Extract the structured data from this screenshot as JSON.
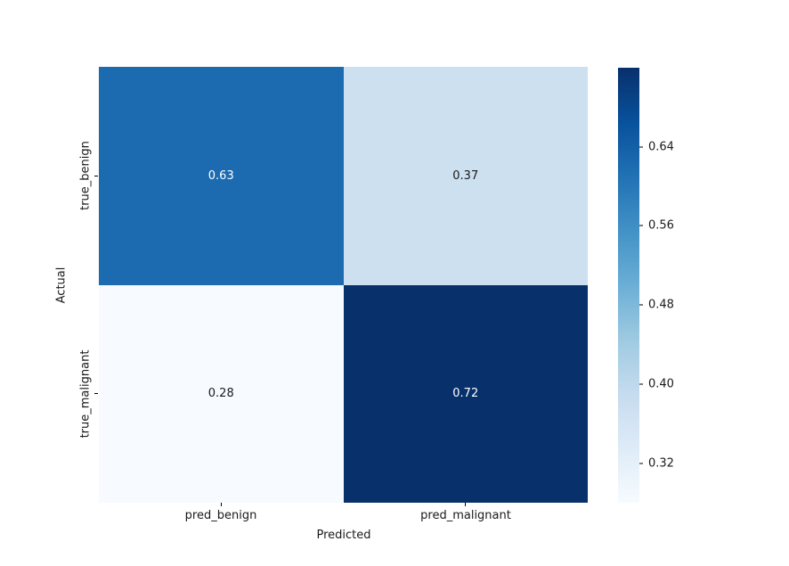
{
  "chart_data": {
    "type": "heatmap",
    "title": "",
    "xlabel": "Predicted",
    "ylabel": "Actual",
    "x_categories": [
      "pred_benign",
      "pred_malignant"
    ],
    "y_categories": [
      "true_benign",
      "true_malignant"
    ],
    "rows": [
      [
        0.63,
        0.37
      ],
      [
        0.28,
        0.72
      ]
    ],
    "vmin": 0.28,
    "vmax": 0.72,
    "colormap": "Blues",
    "grid": false,
    "cells": [
      {
        "label": "0.63",
        "bg": "#1c6ab0",
        "fg": "#ffffff"
      },
      {
        "label": "0.37",
        "bg": "#cde0f0",
        "fg": "#1a1a1a"
      },
      {
        "label": "0.28",
        "bg": "#f7fbff",
        "fg": "#1a1a1a"
      },
      {
        "label": "0.72",
        "bg": "#08306b",
        "fg": "#ffffff"
      }
    ],
    "colorbar": {
      "position": "right",
      "gradient_bottom_to_top": [
        "#f7fbff",
        "#deebf7",
        "#c6dbef",
        "#9ecae1",
        "#6baed6",
        "#4292c6",
        "#2171b5",
        "#08519c",
        "#08306b"
      ],
      "ticks": [
        {
          "value": 0.64,
          "label": "0.64"
        },
        {
          "value": 0.56,
          "label": "0.56"
        },
        {
          "value": 0.48,
          "label": "0.48"
        },
        {
          "value": 0.4,
          "label": "0.40"
        },
        {
          "value": 0.32,
          "label": "0.32"
        }
      ]
    }
  }
}
